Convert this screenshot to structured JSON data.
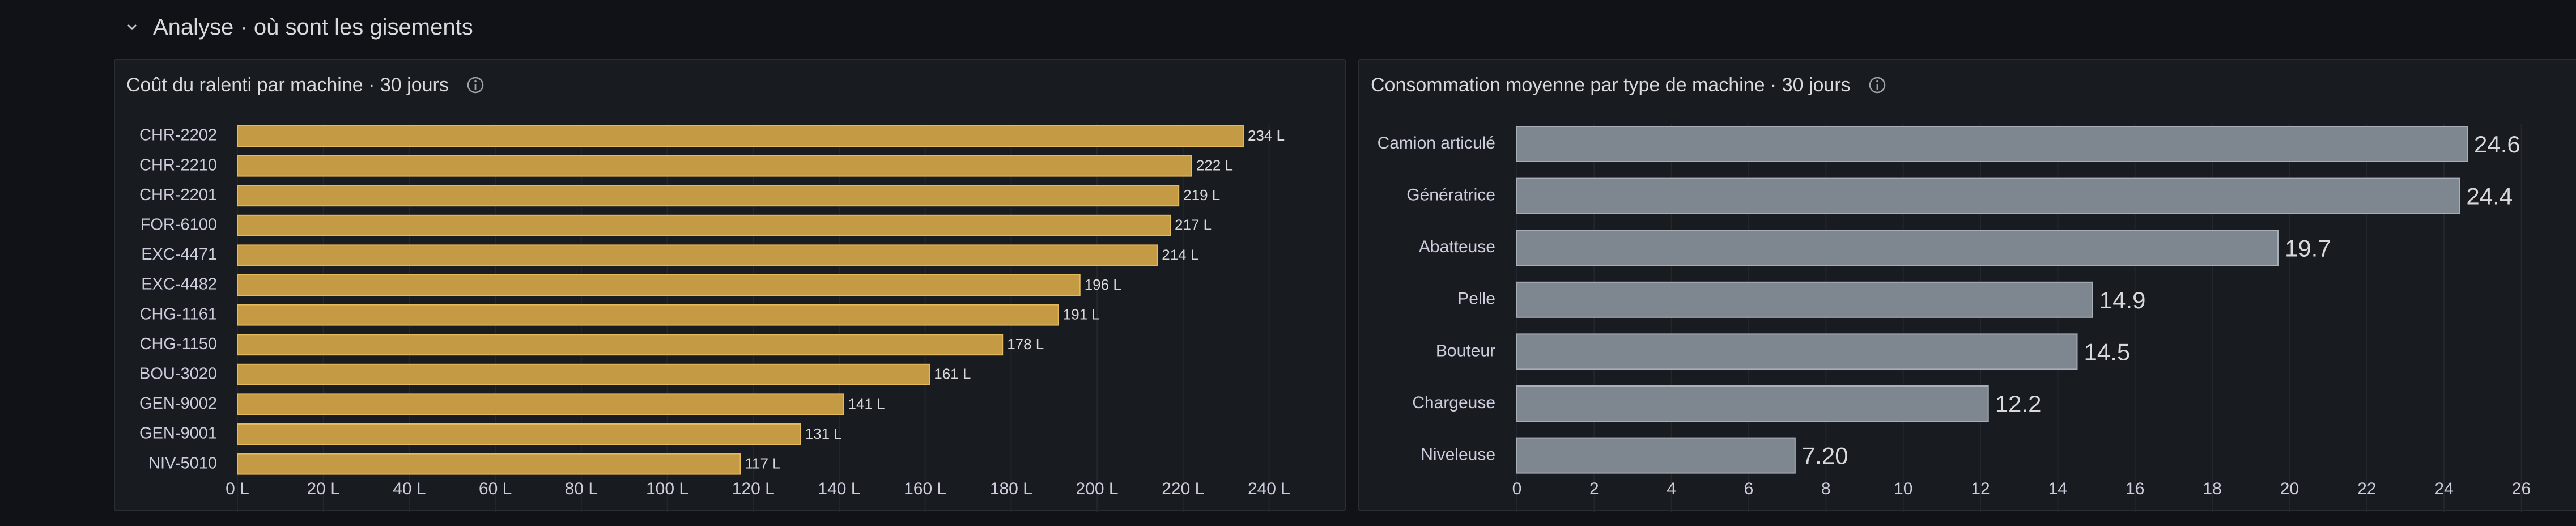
{
  "row": {
    "title": "Analyse · où sont les gisements"
  },
  "panels": {
    "left": {
      "title": "Coût du ralenti par machine · 30 jours"
    },
    "right": {
      "title": "Consommation moyenne par type de machine · 30 jours"
    }
  },
  "chart_data": [
    {
      "type": "bar",
      "orientation": "horizontal",
      "title": "Coût du ralenti par machine · 30 jours",
      "categories": [
        "CHR-2202",
        "CHR-2210",
        "CHR-2201",
        "FOR-6100",
        "EXC-4471",
        "EXC-4482",
        "CHG-1161",
        "CHG-1150",
        "BOU-3020",
        "GEN-9002",
        "GEN-9001",
        "NIV-5010"
      ],
      "values": [
        234,
        222,
        219,
        217,
        214,
        196,
        191,
        178,
        161,
        141,
        131,
        117
      ],
      "value_labels": [
        "234 L",
        "222 L",
        "219 L",
        "217 L",
        "214 L",
        "196 L",
        "191 L",
        "178 L",
        "161 L",
        "141 L",
        "131 L",
        "117 L"
      ],
      "xlim": [
        0,
        246
      ],
      "xticks": [
        0,
        20,
        40,
        60,
        80,
        100,
        120,
        140,
        160,
        180,
        200,
        220,
        240
      ],
      "xtick_labels": [
        "0 L",
        "20 L",
        "40 L",
        "60 L",
        "80 L",
        "100 L",
        "120 L",
        "140 L",
        "160 L",
        "180 L",
        "200 L",
        "220 L",
        "240 L"
      ],
      "grid": true,
      "color": "#c49a45"
    },
    {
      "type": "bar",
      "orientation": "horizontal",
      "title": "Consommation moyenne par type de machine · 30 jours",
      "categories": [
        "Camion articulé",
        "Génératrice",
        "Abatteuse",
        "Pelle",
        "Bouteur",
        "Chargeuse",
        "Niveleuse"
      ],
      "values": [
        24.6,
        24.4,
        19.7,
        14.9,
        14.5,
        12.2,
        7.2
      ],
      "value_labels": [
        "24.6",
        "24.4",
        "19.7",
        "14.9",
        "14.5",
        "12.2",
        "7.20"
      ],
      "xlim": [
        0,
        26.8
      ],
      "xticks": [
        0,
        2,
        4,
        6,
        8,
        10,
        12,
        14,
        16,
        18,
        20,
        22,
        24,
        26
      ],
      "xtick_labels": [
        "0",
        "2",
        "4",
        "6",
        "8",
        "10",
        "12",
        "14",
        "16",
        "18",
        "20",
        "22",
        "24",
        "26"
      ],
      "grid": true,
      "color": "#7e8690"
    }
  ],
  "icons": {
    "collapse": "chevron-down-icon",
    "info": "info-icon"
  }
}
